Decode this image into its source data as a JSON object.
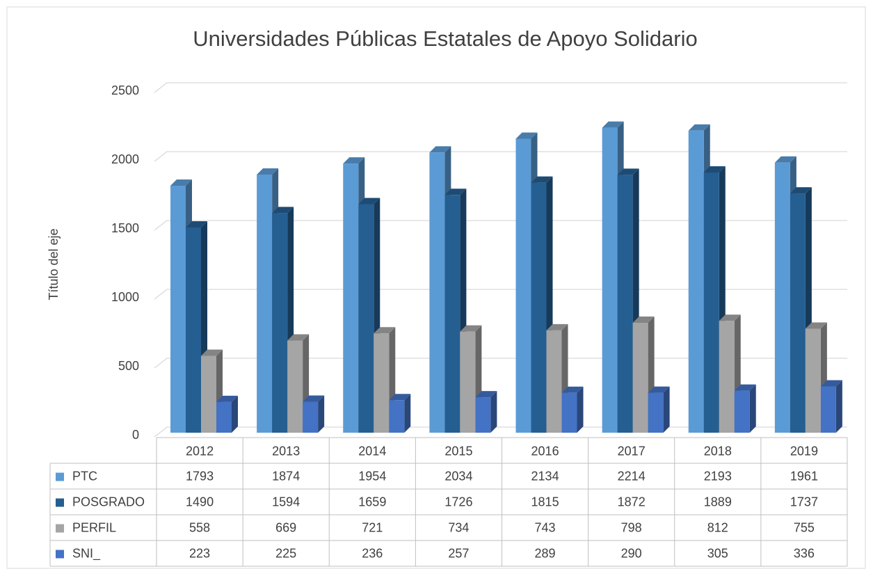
{
  "chart_data": {
    "type": "bar3d",
    "title": "Universidades Públicas Estatales de Apoyo Solidario",
    "y_axis_label": "Título del eje",
    "categories": [
      "2012",
      "2013",
      "2014",
      "2015",
      "2016",
      "2017",
      "2018",
      "2019"
    ],
    "series": [
      {
        "name": "PTC",
        "color": "#5b9bd5",
        "values": [
          1793,
          1874,
          1954,
          2034,
          2134,
          2214,
          2193,
          1961
        ]
      },
      {
        "name": "POSGRADO",
        "color": "#255e91",
        "values": [
          1490,
          1594,
          1659,
          1726,
          1815,
          1872,
          1889,
          1737
        ]
      },
      {
        "name": "PERFIL",
        "color": "#a5a5a5",
        "values": [
          558,
          669,
          721,
          734,
          743,
          798,
          812,
          755
        ]
      },
      {
        "name": "SNI_",
        "color": "#4472c4",
        "values": [
          223,
          225,
          236,
          257,
          289,
          290,
          305,
          336
        ]
      }
    ],
    "ylim": [
      0,
      2500
    ],
    "yticks": [
      0,
      500,
      1000,
      1500,
      2000,
      2500
    ],
    "grid": true,
    "data_table": true
  }
}
